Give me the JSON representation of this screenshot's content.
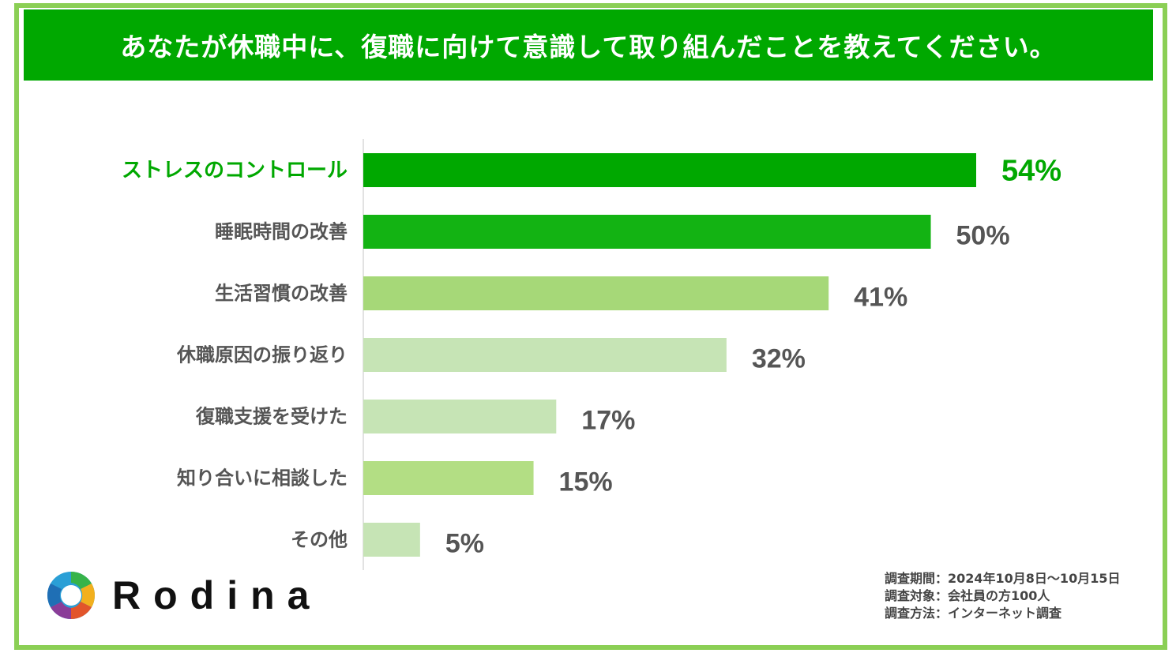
{
  "title": "あなたが休職中に、復職に向けて意識して取り組んだことを教えてください。",
  "chart_data": {
    "type": "bar",
    "orientation": "horizontal",
    "title": "あなたが休職中に、復職に向けて意識して取り組んだことを教えてください。",
    "categories": [
      "ストレスのコントロール",
      "睡眠時間の改善",
      "生活習慣の改善",
      "休職原因の振り返り",
      "復職支援を受けた",
      "知り合いに相談した",
      "その他"
    ],
    "values": [
      54,
      50,
      41,
      32,
      17,
      15,
      5
    ],
    "value_labels": [
      "54%",
      "50%",
      "41%",
      "32%",
      "17%",
      "15%",
      "5%"
    ],
    "bar_colors": [
      "#00a800",
      "#13b313",
      "#a6d878",
      "#c6e4b5",
      "#c6e4b5",
      "#b3de84",
      "#c6e4b5"
    ],
    "highlight_color": "#00a800",
    "label_color": "#555555",
    "xlim": [
      0,
      54
    ],
    "grid": false,
    "legend": "none"
  },
  "brand": {
    "name": "Rodina"
  },
  "survey": {
    "lines": [
      "調査期間：2024年10月8日～10月15日",
      "調査対象：会社員の方100人",
      "調査方法：インターネット調査"
    ]
  }
}
